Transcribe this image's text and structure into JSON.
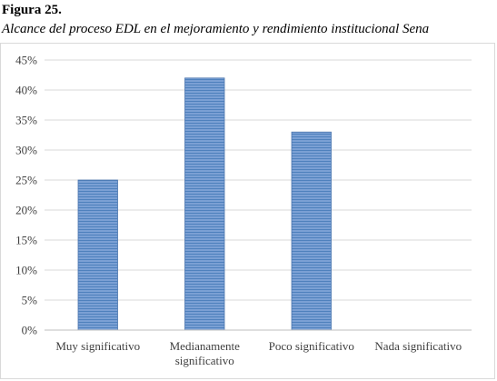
{
  "figure": {
    "label": "Figura 25.",
    "caption": "Alcance del proceso EDL en el mejoramiento y rendimiento institucional Sena"
  },
  "colors": {
    "bar_fill": "#7ba0d4",
    "bar_stripe": "#4f81bd",
    "bar_edge": "#4a74ad",
    "gridline": "#d9d9d9",
    "axis": "#bfbfbf",
    "text": "#404040"
  },
  "chart_data": {
    "type": "bar",
    "title": "",
    "xlabel": "",
    "ylabel": "",
    "categories": [
      [
        "Muy significativo"
      ],
      [
        "Medianamente",
        "significativo"
      ],
      [
        "Poco significativo"
      ],
      [
        "Nada significativo"
      ]
    ],
    "values": [
      0.25,
      0.42,
      0.33,
      0
    ],
    "ylim": [
      0,
      0.45
    ],
    "yticks": [
      0,
      0.05,
      0.1,
      0.15,
      0.2,
      0.25,
      0.3,
      0.35,
      0.4,
      0.45
    ],
    "ytick_labels": [
      "0%",
      "5%",
      "10%",
      "15%",
      "20%",
      "25%",
      "30%",
      "35%",
      "40%",
      "45%"
    ],
    "grid": "horizontal",
    "legend": "none",
    "fill_pattern": "horizontal-stripes"
  }
}
